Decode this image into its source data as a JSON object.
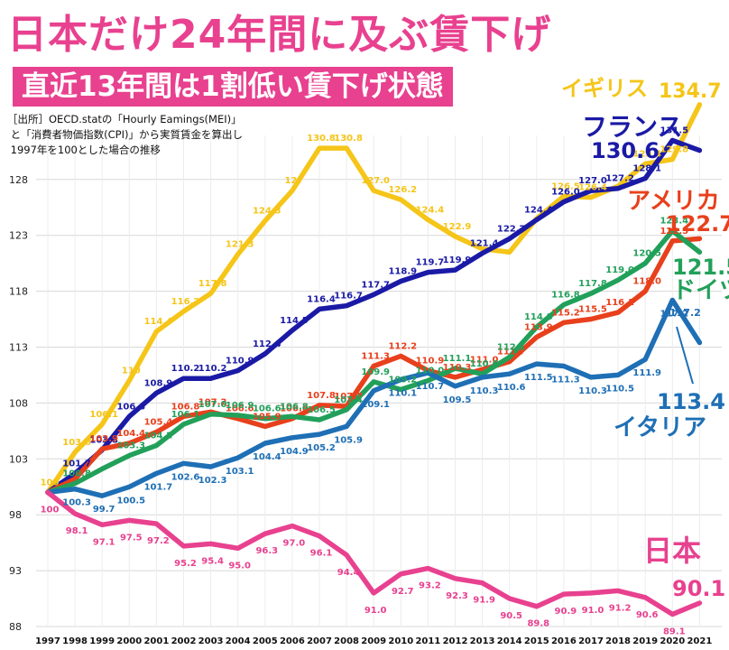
{
  "title": "日本だけ24年間に及ぶ賃下げ",
  "subtitle": "直近13年間は1割低い賃下げ状態",
  "source_note": "［出所］OECD.statの「Hourly Eamings(MEI)」\n と「消費者物価指数(CPI)」から実質賃金を算出し\n 1997年を100とした場合の推移",
  "chart_data": {
    "type": "line",
    "x": [
      "1997",
      "1998",
      "1999",
      "2000",
      "2001",
      "2002",
      "2003",
      "2004",
      "2005",
      "2006",
      "2007",
      "2008",
      "2009",
      "2010",
      "2011",
      "2012",
      "2013",
      "2014",
      "2015",
      "2016",
      "2017",
      "2018",
      "2019",
      "2020",
      "2021"
    ],
    "ylim": [
      88,
      131
    ],
    "yticks": [
      88,
      93,
      98,
      103,
      108,
      113,
      118,
      123,
      128
    ],
    "grid": true,
    "legend": "direct labels",
    "series": [
      {
        "name": "イギリス",
        "color": "#f5c518",
        "end_label": "134.7",
        "values": [
          100,
          103.6,
          106.1,
          110,
          114.4,
          116.2,
          117.8,
          121.3,
          124.3,
          127,
          130.8,
          130.8,
          127.0,
          126.2,
          124.4,
          122.9,
          121.8,
          121.5,
          124.5,
          126.5,
          126.4,
          127.4,
          129.4,
          129.8,
          134.7
        ],
        "point_labels": [
          "100",
          "103.6",
          "106.1",
          "110",
          "114.4",
          "116.2",
          "117.8",
          "121.3",
          "124.3",
          "127",
          "130.8",
          "130.8",
          "127.0",
          "126.2",
          "124.4",
          "122.9",
          "",
          "",
          "",
          "126.5",
          "126.4",
          "",
          "129.4",
          "129.8",
          ""
        ]
      },
      {
        "name": "フランス",
        "color": "#1a1aa6",
        "end_label": "130.6",
        "values": [
          100,
          101.7,
          103.8,
          106.8,
          108.9,
          110.2,
          110.2,
          110.9,
          112.4,
          114.5,
          116.4,
          116.7,
          117.7,
          118.9,
          119.7,
          119.9,
          121.4,
          122.7,
          124.4,
          126.0,
          127.0,
          127.2,
          128.1,
          131.5,
          130.6
        ],
        "point_labels": [
          "",
          "101.7",
          "103.8",
          "106.8",
          "108.9",
          "110.2",
          "110.2",
          "110.9",
          "112.4",
          "114.5",
          "116.4",
          "116.7",
          "117.7",
          "118.9",
          "119.7",
          "119.9",
          "121.4",
          "122.7",
          "124.4",
          "126.0",
          "127.0",
          "127.2",
          "128.1",
          "131.5",
          ""
        ]
      },
      {
        "name": "アメリカ",
        "color": "#e8401c",
        "end_label": "122.7",
        "values": [
          100,
          101.2,
          103.9,
          104.4,
          105.4,
          106.8,
          107.2,
          106.6,
          105.9,
          106.6,
          107.8,
          107.7,
          111.3,
          112.2,
          110.9,
          110.3,
          111.0,
          111.7,
          113.9,
          115.2,
          115.5,
          116.1,
          118.0,
          122.5,
          122.7
        ],
        "point_labels": [
          "",
          "",
          "103.9",
          "104.4",
          "105.4",
          "106.8",
          "107.2",
          "106.6",
          "105.9",
          "106.6",
          "107.8",
          "107.7",
          "111.3",
          "112.2",
          "110.9",
          "110.3",
          "111.0",
          "111.7",
          "113.9",
          "115.2",
          "115.5",
          "116.1",
          "118.0",
          "122.5",
          ""
        ]
      },
      {
        "name": "ドイツ",
        "color": "#22a05a",
        "end_label": "121.5",
        "values": [
          100,
          100.8,
          102.1,
          103.3,
          104.2,
          106.1,
          107.0,
          106.9,
          106.6,
          106.8,
          106.5,
          107.4,
          109.9,
          109.2,
          110.0,
          111.1,
          110.6,
          112.1,
          114.8,
          116.8,
          117.8,
          119.0,
          120.5,
          123.4,
          121.5
        ],
        "point_labels": [
          "",
          "100.8",
          "",
          "103.3",
          "104.2",
          "106.1",
          "107.0",
          "106.9",
          "106.6",
          "106.8",
          "106.5",
          "107.4",
          "109.9",
          "109.2",
          "110.0",
          "111.1",
          "110.6",
          "112.1",
          "114.8",
          "116.8",
          "117.8",
          "119.0",
          "120.5",
          "123.4",
          ""
        ]
      },
      {
        "name": "イタリア",
        "color": "#1e6fb5",
        "end_label": "113.4",
        "values": [
          100,
          100.3,
          99.7,
          100.5,
          101.7,
          102.6,
          102.3,
          103.1,
          104.4,
          104.9,
          105.2,
          105.9,
          109.1,
          110.1,
          110.7,
          109.5,
          110.3,
          110.6,
          111.5,
          111.3,
          110.3,
          110.5,
          111.9,
          117.2,
          113.4
        ],
        "point_labels": [
          "",
          "100.3",
          "99.7",
          "100.5",
          "101.7",
          "102.6",
          "102.3",
          "103.1",
          "104.4",
          "104.9",
          "105.2",
          "105.9",
          "109.1",
          "110.1",
          "110.7",
          "109.5",
          "110.3",
          "110.6",
          "111.5",
          "111.3",
          "110.3",
          "110.5",
          "111.9",
          "117.2",
          ""
        ]
      },
      {
        "name": "日本",
        "color": "#e8418f",
        "end_label": "90.1",
        "values": [
          100,
          98.1,
          97.1,
          97.5,
          97.2,
          95.2,
          95.4,
          95.0,
          96.3,
          97.0,
          96.1,
          94.4,
          91.0,
          92.7,
          93.2,
          92.3,
          91.9,
          90.5,
          89.8,
          90.9,
          91.0,
          91.2,
          90.6,
          89.1,
          90.1
        ],
        "point_labels": [
          "100",
          "98.1",
          "97.1",
          "97.5",
          "97.2",
          "95.2",
          "95.4",
          "95.0",
          "96.3",
          "97.0",
          "96.1",
          "94.4",
          "91.0",
          "92.7",
          "93.2",
          "92.3",
          "91.9",
          "90.5",
          "89.8",
          "90.9",
          "91.0",
          "91.2",
          "90.6",
          "89.1",
          ""
        ]
      }
    ]
  }
}
